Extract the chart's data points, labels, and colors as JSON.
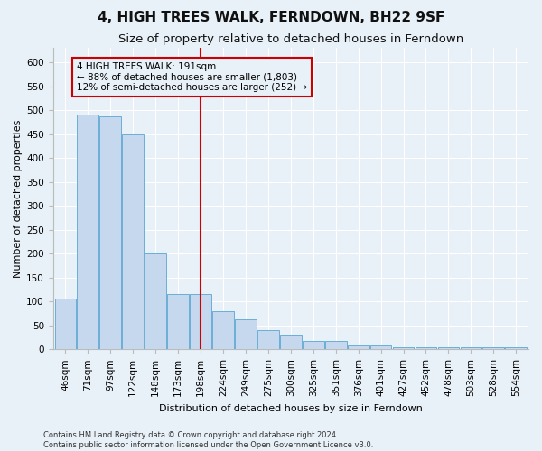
{
  "title": "4, HIGH TREES WALK, FERNDOWN, BH22 9SF",
  "subtitle": "Size of property relative to detached houses in Ferndown",
  "xlabel": "Distribution of detached houses by size in Ferndown",
  "ylabel": "Number of detached properties",
  "categories": [
    "46sqm",
    "71sqm",
    "97sqm",
    "122sqm",
    "148sqm",
    "173sqm",
    "198sqm",
    "224sqm",
    "249sqm",
    "275sqm",
    "300sqm",
    "325sqm",
    "351sqm",
    "376sqm",
    "401sqm",
    "427sqm",
    "452sqm",
    "478sqm",
    "503sqm",
    "528sqm",
    "554sqm"
  ],
  "values": [
    107,
    490,
    487,
    450,
    200,
    115,
    115,
    80,
    62,
    40,
    30,
    18,
    18,
    8,
    8,
    5,
    5,
    5,
    5,
    5,
    5
  ],
  "bar_color": "#c5d8ed",
  "bar_edge_color": "#6aaed6",
  "property_line_index": 6,
  "property_line_color": "#cc0000",
  "annotation_text": "4 HIGH TREES WALK: 191sqm\n← 88% of detached houses are smaller (1,803)\n12% of semi-detached houses are larger (252) →",
  "annotation_box_color": "#cc0000",
  "annotation_bg_color": "#e8f0f8",
  "ylim": [
    0,
    630
  ],
  "yticks": [
    0,
    50,
    100,
    150,
    200,
    250,
    300,
    350,
    400,
    450,
    500,
    550,
    600
  ],
  "footer": "Contains HM Land Registry data © Crown copyright and database right 2024.\nContains public sector information licensed under the Open Government Licence v3.0.",
  "background_color": "#e8f0f8",
  "grid_color": "#ffffff",
  "title_fontsize": 11,
  "subtitle_fontsize": 9.5,
  "axis_label_fontsize": 8,
  "tick_fontsize": 7.5,
  "footer_fontsize": 6
}
